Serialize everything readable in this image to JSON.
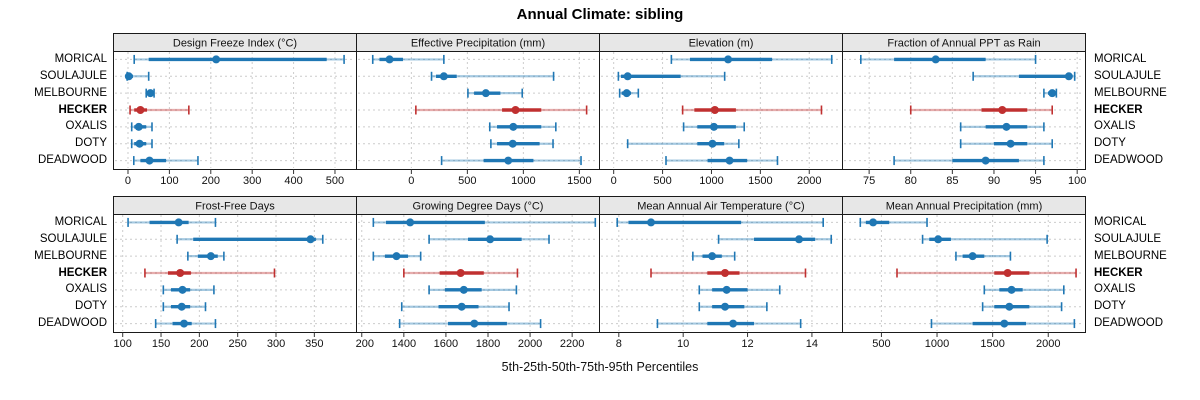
{
  "title": "Annual Climate: sibling",
  "footer": "5th-25th-50th-75th-95th Percentiles",
  "sites": [
    "MORICAL",
    "SOULAJULE",
    "MELBOURNE",
    "HECKER",
    "OXALIS",
    "DOTY",
    "DEADWOOD"
  ],
  "highlight_site": "HECKER",
  "percentile_labels": [
    "5th",
    "25th",
    "50th",
    "75th",
    "95th"
  ],
  "colors": {
    "series_normal": "#1f77b4",
    "series_highlight": "#c03030",
    "strip_bg": "#e7e7e7",
    "panel_border": "#1a1a1a",
    "grid": "#cccccc",
    "tick_text": "#111111"
  },
  "chart_data": [
    {
      "type": "scatter",
      "subtype": "percentile-dot-whisker",
      "title": "Design Freeze Index (°C)",
      "row": 0,
      "xlim": [
        -35,
        552
      ],
      "ticks": [
        0,
        100,
        200,
        300,
        400,
        500
      ],
      "legend": "none",
      "grid": "dotted",
      "series": [
        {
          "site": "MORICAL",
          "values": [
            15,
            50,
            213,
            480,
            522
          ]
        },
        {
          "site": "SOULAJULE",
          "values": [
            -2,
            0,
            2,
            12,
            50
          ]
        },
        {
          "site": "MELBOURNE",
          "values": [
            44,
            50,
            54,
            58,
            63
          ]
        },
        {
          "site": "HECKER",
          "values": [
            5,
            15,
            30,
            46,
            147
          ]
        },
        {
          "site": "OXALIS",
          "values": [
            9,
            15,
            26,
            44,
            58
          ]
        },
        {
          "site": "DOTY",
          "values": [
            9,
            15,
            28,
            44,
            58
          ]
        },
        {
          "site": "DEADWOOD",
          "values": [
            14,
            30,
            52,
            92,
            169
          ]
        }
      ]
    },
    {
      "type": "scatter",
      "subtype": "percentile-dot-whisker",
      "title": "Effective Precipitation (mm)",
      "row": 0,
      "xlim": [
        -490,
        1680
      ],
      "ticks": [
        0,
        500,
        1000,
        1500
      ],
      "legend": "none",
      "grid": "dotted",
      "series": [
        {
          "site": "MORICAL",
          "values": [
            -345,
            -285,
            -195,
            -75,
            290
          ]
        },
        {
          "site": "SOULAJULE",
          "values": [
            180,
            220,
            290,
            405,
            1270
          ]
        },
        {
          "site": "MELBOURNE",
          "values": [
            505,
            560,
            665,
            795,
            990
          ]
        },
        {
          "site": "HECKER",
          "values": [
            40,
            810,
            930,
            1160,
            1565
          ]
        },
        {
          "site": "OXALIS",
          "values": [
            700,
            765,
            910,
            1160,
            1290
          ]
        },
        {
          "site": "DOTY",
          "values": [
            710,
            765,
            905,
            1145,
            1265
          ]
        },
        {
          "site": "DEADWOOD",
          "values": [
            270,
            645,
            865,
            1090,
            1515
          ]
        }
      ]
    },
    {
      "type": "scatter",
      "subtype": "percentile-dot-whisker",
      "title": "Elevation (m)",
      "row": 0,
      "xlim": [
        -145,
        2340
      ],
      "ticks": [
        0,
        500,
        1000,
        1500,
        2000
      ],
      "legend": "none",
      "grid": "dotted",
      "series": [
        {
          "site": "MORICAL",
          "values": [
            590,
            780,
            1170,
            1620,
            2230
          ]
        },
        {
          "site": "SOULAJULE",
          "values": [
            48,
            75,
            143,
            685,
            1135
          ]
        },
        {
          "site": "MELBOURNE",
          "values": [
            61,
            82,
            133,
            177,
            252
          ]
        },
        {
          "site": "HECKER",
          "values": [
            705,
            825,
            1035,
            1250,
            2125
          ]
        },
        {
          "site": "OXALIS",
          "values": [
            715,
            855,
            1025,
            1250,
            1335
          ]
        },
        {
          "site": "DOTY",
          "values": [
            143,
            855,
            1010,
            1130,
            1280
          ]
        },
        {
          "site": "DEADWOOD",
          "values": [
            535,
            960,
            1185,
            1365,
            1675
          ]
        }
      ]
    },
    {
      "type": "scatter",
      "subtype": "percentile-dot-whisker",
      "title": "Fraction of Annual PPT as Rain",
      "row": 0,
      "xlim": [
        71.8,
        101
      ],
      "ticks": [
        75,
        80,
        85,
        90,
        95,
        100
      ],
      "legend": "none",
      "grid": "dotted",
      "series": [
        {
          "site": "MORICAL",
          "values": [
            74,
            78,
            83,
            89,
            95
          ]
        },
        {
          "site": "SOULAJULE",
          "values": [
            87.5,
            93,
            99,
            99.4,
            99.7
          ]
        },
        {
          "site": "MELBOURNE",
          "values": [
            96,
            96.5,
            97,
            97.2,
            97.5
          ]
        },
        {
          "site": "HECKER",
          "values": [
            80,
            88.5,
            91,
            94,
            97
          ]
        },
        {
          "site": "OXALIS",
          "values": [
            86,
            89,
            91.5,
            94,
            96
          ]
        },
        {
          "site": "DOTY",
          "values": [
            86,
            90,
            92,
            94,
            97
          ]
        },
        {
          "site": "DEADWOOD",
          "values": [
            78,
            85,
            89,
            93,
            96
          ]
        }
      ]
    },
    {
      "type": "scatter",
      "subtype": "percentile-dot-whisker",
      "title": "Frost-Free Days",
      "row": 1,
      "xlim": [
        88,
        405
      ],
      "ticks": [
        100,
        150,
        200,
        250,
        300,
        350
      ],
      "legend": "none",
      "grid": "dotted",
      "series": [
        {
          "site": "MORICAL",
          "values": [
            107,
            135,
            173,
            186,
            221
          ]
        },
        {
          "site": "SOULAJULE",
          "values": [
            171,
            192,
            345,
            352,
            361
          ]
        },
        {
          "site": "MELBOURNE",
          "values": [
            185,
            198,
            215,
            224,
            232
          ]
        },
        {
          "site": "HECKER",
          "values": [
            129,
            159,
            175,
            189,
            298
          ]
        },
        {
          "site": "OXALIS",
          "values": [
            153,
            163,
            178,
            188,
            219
          ]
        },
        {
          "site": "DOTY",
          "values": [
            153,
            163,
            177,
            188,
            208
          ]
        },
        {
          "site": "DEADWOOD",
          "values": [
            143,
            165,
            180,
            190,
            221
          ]
        }
      ]
    },
    {
      "type": "scatter",
      "subtype": "percentile-dot-whisker",
      "title": "Growing Degree Days (°C)",
      "row": 1,
      "xlim": [
        1175,
        2330
      ],
      "ticks": [
        1200,
        1400,
        1600,
        1800,
        2000,
        2200
      ],
      "legend": "none",
      "grid": "dotted",
      "series": [
        {
          "site": "MORICAL",
          "values": [
            1255,
            1315,
            1430,
            1785,
            2310
          ]
        },
        {
          "site": "SOULAJULE",
          "values": [
            1520,
            1705,
            1810,
            1960,
            2090
          ]
        },
        {
          "site": "MELBOURNE",
          "values": [
            1255,
            1310,
            1365,
            1420,
            1480
          ]
        },
        {
          "site": "HECKER",
          "values": [
            1400,
            1570,
            1670,
            1780,
            1940
          ]
        },
        {
          "site": "OXALIS",
          "values": [
            1520,
            1595,
            1685,
            1770,
            1935
          ]
        },
        {
          "site": "DOTY",
          "values": [
            1390,
            1565,
            1675,
            1755,
            1900
          ]
        },
        {
          "site": "DEADWOOD",
          "values": [
            1380,
            1610,
            1735,
            1890,
            2050
          ]
        }
      ]
    },
    {
      "type": "scatter",
      "subtype": "percentile-dot-whisker",
      "title": "Mean Annual Air Temperature (°C)",
      "row": 1,
      "xlim": [
        7.4,
        14.95
      ],
      "ticks": [
        8,
        10,
        12,
        14
      ],
      "legend": "none",
      "grid": "dotted",
      "series": [
        {
          "site": "MORICAL",
          "values": [
            7.95,
            8.3,
            9.0,
            11.8,
            14.35
          ]
        },
        {
          "site": "SOULAJULE",
          "values": [
            11.1,
            12.2,
            13.6,
            14.1,
            14.6
          ]
        },
        {
          "site": "MELBOURNE",
          "values": [
            10.3,
            10.6,
            10.9,
            11.2,
            11.6
          ]
        },
        {
          "site": "HECKER",
          "values": [
            9.0,
            10.75,
            11.3,
            11.75,
            13.8
          ]
        },
        {
          "site": "OXALIS",
          "values": [
            10.5,
            10.9,
            11.35,
            12.0,
            13.0
          ]
        },
        {
          "site": "DOTY",
          "values": [
            10.5,
            10.9,
            11.3,
            11.9,
            12.6
          ]
        },
        {
          "site": "DEADWOOD",
          "values": [
            9.2,
            10.75,
            11.55,
            12.2,
            13.65
          ]
        }
      ]
    },
    {
      "type": "scatter",
      "subtype": "percentile-dot-whisker",
      "title": "Mean Annual Precipitation (mm)",
      "row": 1,
      "xlim": [
        150,
        2335
      ],
      "ticks": [
        500,
        1000,
        1500,
        2000
      ],
      "legend": "none",
      "grid": "dotted",
      "series": [
        {
          "site": "MORICAL",
          "values": [
            310,
            360,
            425,
            570,
            910
          ]
        },
        {
          "site": "SOULAJULE",
          "values": [
            870,
            930,
            1010,
            1125,
            1990
          ]
        },
        {
          "site": "MELBOURNE",
          "values": [
            1170,
            1230,
            1320,
            1425,
            1660
          ]
        },
        {
          "site": "HECKER",
          "values": [
            640,
            1515,
            1635,
            1830,
            2250
          ]
        },
        {
          "site": "OXALIS",
          "values": [
            1425,
            1560,
            1670,
            1770,
            2140
          ]
        },
        {
          "site": "DOTY",
          "values": [
            1410,
            1515,
            1650,
            1830,
            2120
          ]
        },
        {
          "site": "DEADWOOD",
          "values": [
            950,
            1320,
            1605,
            1800,
            2235
          ]
        }
      ]
    }
  ]
}
